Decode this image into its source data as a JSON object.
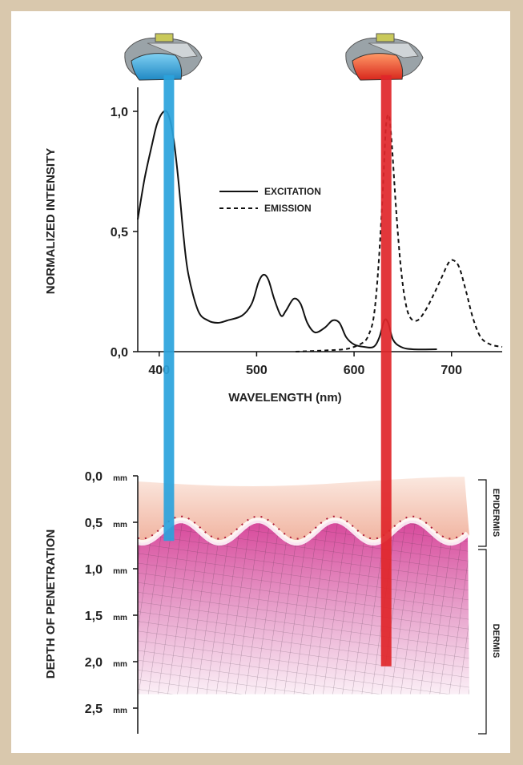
{
  "chart_data": [
    {
      "type": "line",
      "xlabel": "WAVELENGTH (nm)",
      "ylabel": "NORMALIZED INTENSITY",
      "xlim": [
        378,
        752
      ],
      "ylim": [
        0,
        1.1
      ],
      "x_ticks": [
        400,
        500,
        600,
        700
      ],
      "y_ticks": [
        "0,0",
        "0,5",
        "1,0"
      ],
      "legend_position": "center-right",
      "series": [
        {
          "name": "EXCITATION",
          "style": "solid",
          "points": [
            [
              378,
              0.55
            ],
            [
              385,
              0.72
            ],
            [
              392,
              0.85
            ],
            [
              398,
              0.95
            ],
            [
              405,
              1.0
            ],
            [
              410,
              0.98
            ],
            [
              415,
              0.88
            ],
            [
              420,
              0.7
            ],
            [
              425,
              0.48
            ],
            [
              430,
              0.32
            ],
            [
              440,
              0.17
            ],
            [
              450,
              0.13
            ],
            [
              460,
              0.12
            ],
            [
              470,
              0.13
            ],
            [
              485,
              0.15
            ],
            [
              495,
              0.2
            ],
            [
              502,
              0.29
            ],
            [
              507,
              0.32
            ],
            [
              512,
              0.3
            ],
            [
              518,
              0.22
            ],
            [
              525,
              0.15
            ],
            [
              530,
              0.17
            ],
            [
              538,
              0.22
            ],
            [
              545,
              0.2
            ],
            [
              552,
              0.12
            ],
            [
              560,
              0.08
            ],
            [
              570,
              0.1
            ],
            [
              578,
              0.13
            ],
            [
              585,
              0.12
            ],
            [
              592,
              0.06
            ],
            [
              600,
              0.03
            ],
            [
              610,
              0.02
            ],
            [
              620,
              0.02
            ],
            [
              626,
              0.06
            ],
            [
              631,
              0.13
            ],
            [
              635,
              0.12
            ],
            [
              640,
              0.05
            ],
            [
              648,
              0.02
            ],
            [
              660,
              0.01
            ],
            [
              685,
              0.01
            ]
          ]
        },
        {
          "name": "EMISSION",
          "style": "dashed",
          "points": [
            [
              540,
              0.0
            ],
            [
              570,
              0.005
            ],
            [
              590,
              0.01
            ],
            [
              600,
              0.02
            ],
            [
              610,
              0.04
            ],
            [
              615,
              0.07
            ],
            [
              620,
              0.14
            ],
            [
              624,
              0.3
            ],
            [
              628,
              0.55
            ],
            [
              631,
              0.8
            ],
            [
              633,
              0.95
            ],
            [
              636,
              0.98
            ],
            [
              639,
              0.85
            ],
            [
              643,
              0.6
            ],
            [
              648,
              0.35
            ],
            [
              653,
              0.2
            ],
            [
              658,
              0.14
            ],
            [
              665,
              0.13
            ],
            [
              673,
              0.17
            ],
            [
              682,
              0.24
            ],
            [
              690,
              0.31
            ],
            [
              697,
              0.37
            ],
            [
              702,
              0.38
            ],
            [
              708,
              0.35
            ],
            [
              715,
              0.25
            ],
            [
              722,
              0.14
            ],
            [
              730,
              0.06
            ],
            [
              740,
              0.03
            ],
            [
              752,
              0.02
            ]
          ]
        }
      ],
      "bars": [
        {
          "name": "blue",
          "wavelength": 410,
          "color": "#2aa3dc"
        },
        {
          "name": "red",
          "wavelength": 633,
          "color": "#e0262a"
        }
      ]
    },
    {
      "type": "other",
      "ylabel": "DEPTH OF PENETRATION",
      "y_ticks": [
        {
          "value": "0,0",
          "unit": "mm"
        },
        {
          "value": "0,5",
          "unit": "mm"
        },
        {
          "value": "1,0",
          "unit": "mm"
        },
        {
          "value": "1,5",
          "unit": "mm"
        },
        {
          "value": "2,0",
          "unit": "mm"
        },
        {
          "value": "2,5",
          "unit": "mm"
        }
      ],
      "ylim_mm": [
        0,
        2.5
      ],
      "penetration_mm": {
        "blue": 0.7,
        "red": 2.05
      },
      "layers": [
        {
          "label": "EPIDERMIS",
          "from_mm": 0.0,
          "to_mm": 0.65
        },
        {
          "label": "DERMIS",
          "from_mm": 0.65,
          "to_mm": 2.65
        }
      ]
    }
  ],
  "colors": {
    "blue_light": "#2aa3dc",
    "red_light": "#e0262a",
    "epidermis": "#f2b9a6",
    "dermis": "#c7398c"
  },
  "icons": [
    "blue-lamp-device-icon",
    "red-lamp-device-icon"
  ]
}
